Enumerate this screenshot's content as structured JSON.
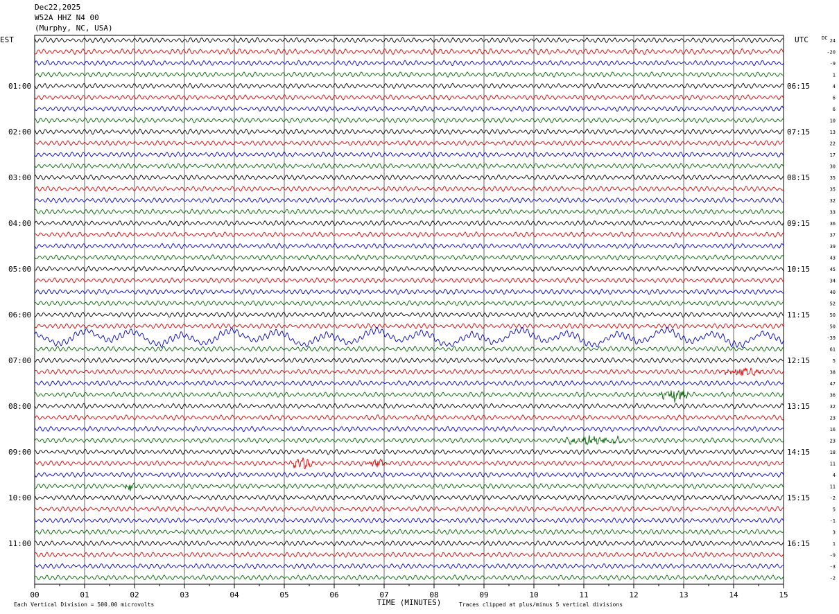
{
  "header": {
    "date": "Dec22,2025",
    "station": "W52A HHZ N4 00",
    "location": "(Murphy, NC, USA)"
  },
  "labels": {
    "left_timezone": "EST",
    "right_timezone": "UTC",
    "dc_label": "DC",
    "xlabel": "TIME (MINUTES)",
    "footer_left": "Each Vertical Division =  500.00 microvolts",
    "footer_right": "Traces clipped at plus/minus 5 vertical divisions"
  },
  "colors": {
    "trace_cycle": [
      "#000000",
      "#dd0000",
      "#0000cc",
      "#006600"
    ],
    "grid": "#000000",
    "background": "#ffffff"
  },
  "chart_data": {
    "type": "line",
    "description_kind": "helicorder",
    "x_ticks": [
      "00",
      "01",
      "02",
      "03",
      "04",
      "05",
      "06",
      "07",
      "08",
      "09",
      "10",
      "11",
      "12",
      "13",
      "14",
      "15"
    ],
    "xlim": [
      0,
      15
    ],
    "left_hour_labels": [
      "01:00",
      "02:00",
      "03:00",
      "04:00",
      "05:00",
      "06:00",
      "07:00",
      "08:00",
      "09:00",
      "10:00",
      "11:00"
    ],
    "right_hour_labels": [
      "06:15",
      "07:15",
      "08:15",
      "09:15",
      "10:15",
      "11:15",
      "12:15",
      "13:15",
      "14:15",
      "15:15",
      "16:15"
    ],
    "dc_offsets": [
      "24",
      "-20",
      "-9",
      "1",
      "4",
      "6",
      "6",
      "10",
      "13",
      "22",
      "17",
      "30",
      "35",
      "35",
      "32",
      "33",
      "36",
      "37",
      "39",
      "43",
      "45",
      "34",
      "40",
      "52",
      "50",
      "50",
      "-39",
      "61",
      "5",
      "38",
      "47",
      "36",
      "32",
      "23",
      "16",
      "23",
      "18",
      "11",
      "4",
      "11",
      "-2",
      "5",
      "-1",
      "3",
      "1",
      "-9",
      "-3",
      "-2"
    ],
    "trace_count": 48,
    "trace_amplitude_divisions": [
      0.9,
      1.0,
      0.9,
      0.9,
      0.9,
      0.9,
      0.9,
      0.9,
      0.9,
      0.9,
      0.9,
      0.9,
      0.9,
      0.9,
      0.9,
      0.9,
      0.9,
      0.9,
      0.9,
      0.9,
      0.9,
      0.9,
      0.9,
      0.9,
      0.9,
      0.9,
      1.3,
      0.9,
      0.9,
      0.9,
      0.9,
      0.9,
      0.9,
      0.9,
      0.9,
      0.9,
      0.9,
      0.9,
      0.9,
      0.9,
      0.9,
      0.9,
      0.9,
      0.9,
      0.9,
      0.9,
      0.9,
      0.9
    ],
    "events": [
      {
        "trace": 35,
        "minute_start": 10.6,
        "minute_end": 11.8,
        "amplitude": 1.4
      },
      {
        "trace": 31,
        "minute_start": 12.5,
        "minute_end": 13.1,
        "amplitude": 1.8
      },
      {
        "trace": 37,
        "minute_start": 5.1,
        "minute_end": 5.6,
        "amplitude": 1.5
      },
      {
        "trace": 37,
        "minute_start": 6.6,
        "minute_end": 7.1,
        "amplitude": 1.1
      },
      {
        "trace": 39,
        "minute_start": 1.8,
        "minute_end": 2.0,
        "amplitude": 1.3
      },
      {
        "trace": 29,
        "minute_start": 13.7,
        "minute_end": 14.6,
        "amplitude": 1.0
      }
    ]
  }
}
